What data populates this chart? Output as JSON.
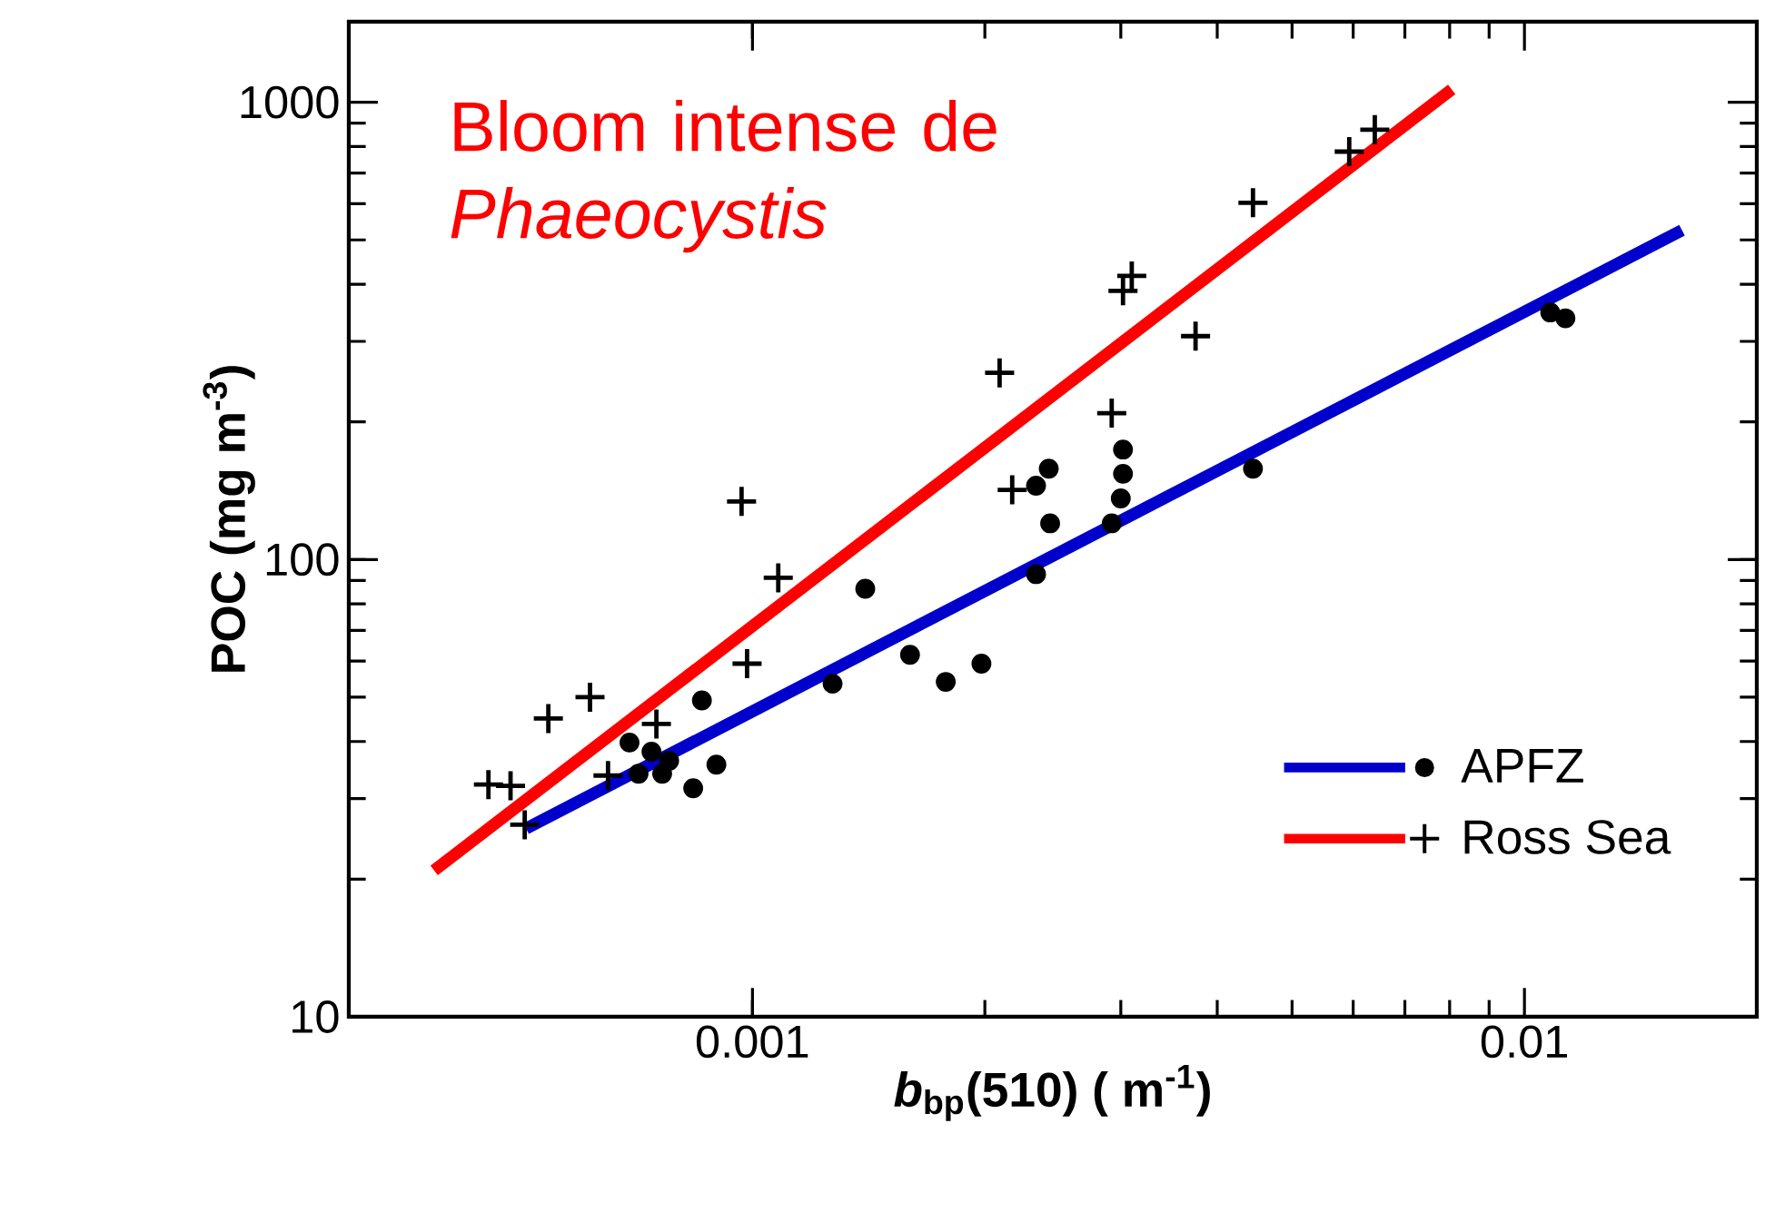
{
  "chart_data": {
    "type": "scatter",
    "xlabel": "*b*$_{bp}$(510)  ( m$^{-1}$)",
    "ylabel": "POC  (mg m$^{-3}$)",
    "log": "xy",
    "xlim": [
      0.0003,
      0.02
    ],
    "ylim": [
      10,
      1500
    ],
    "xticks": [
      0.001,
      0.01
    ],
    "yticks": [
      10,
      100,
      1000
    ],
    "grid": false,
    "legend": "bottom right",
    "annotations": [
      "Bloom intense de *Phaeocystis*"
    ],
    "series": [
      {
        "name": "APFZ",
        "marker": "circle",
        "color": "#000000",
        "x": [
          0.000693,
          0.00074,
          0.000712,
          0.000764,
          0.00078,
          0.000838,
          0.000898,
          0.00086,
          0.0014,
          0.00127,
          0.0016,
          0.00178,
          0.00198,
          0.00233,
          0.00242,
          0.00233,
          0.00243,
          0.00302,
          0.00302,
          0.003,
          0.00292,
          0.00445,
          0.0108,
          0.0113
        ],
        "values": [
          39.8,
          38,
          34,
          34,
          36.3,
          31.6,
          35.6,
          49.2,
          86.3,
          53.5,
          61.9,
          54,
          59.2,
          92.9,
          158,
          145,
          120,
          174,
          154,
          136,
          120,
          158,
          347,
          337
        ]
      },
      {
        "name": "Ross Sea",
        "marker": "cross",
        "color": "#000000",
        "x": [
          0.000455,
          0.000486,
          0.000507,
          0.000544,
          0.000616,
          0.00065,
          0.000751,
          0.000984,
          0.00108,
          0.000968,
          0.00209,
          0.00217,
          0.00292,
          0.0031,
          0.00302,
          0.00375,
          0.00445,
          0.00593,
          0.0064
        ],
        "values": [
          32.2,
          32,
          26.3,
          44.9,
          50,
          33.7,
          43.7,
          59.2,
          91.2,
          134,
          256,
          142,
          209,
          417,
          387,
          308,
          603,
          780,
          871
        ]
      },
      {
        "type": "line",
        "color": "#0000cc",
        "line_style": "solid",
        "x": [
          0.000509,
          0.016
        ],
        "values": [
          25.8,
          525
        ]
      },
      {
        "type": "line",
        "color": "#ff0000",
        "line_style": "solid",
        "x": [
          0.000387,
          0.00805
        ],
        "values": [
          20.9,
          1067
        ]
      }
    ]
  }
}
